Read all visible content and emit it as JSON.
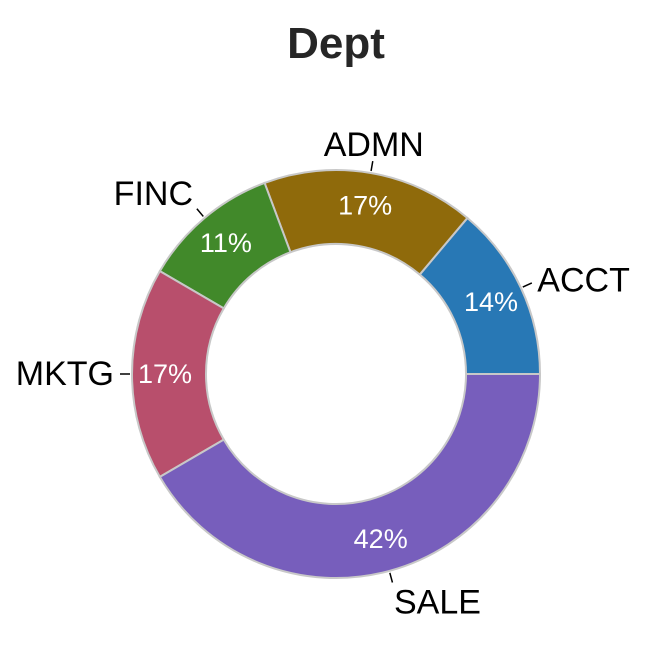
{
  "chart_data": {
    "type": "pie",
    "donut": true,
    "title": "Dept",
    "slices": [
      {
        "label": "ACCT",
        "value": 14,
        "pct_label": "14%",
        "color": "#2878b5"
      },
      {
        "label": "ADMN",
        "value": 17,
        "pct_label": "17%",
        "color": "#8f6a0b"
      },
      {
        "label": "FINC",
        "value": 11,
        "pct_label": "11%",
        "color": "#41892a"
      },
      {
        "label": "MKTG",
        "value": 17,
        "pct_label": "17%",
        "color": "#b84f6c"
      },
      {
        "label": "SALE",
        "value": 42,
        "pct_label": "42%",
        "color": "#775ebc"
      }
    ],
    "start_angle": "3 o'clock",
    "direction": "counterclockwise"
  }
}
